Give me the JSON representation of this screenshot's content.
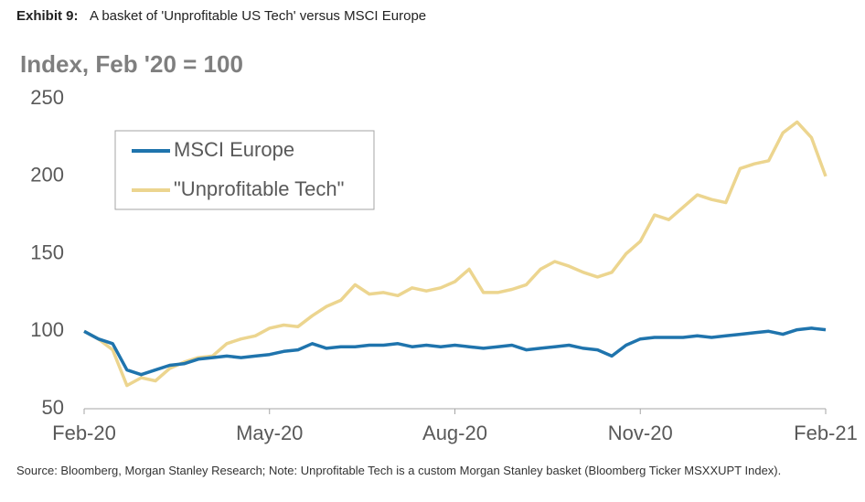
{
  "chart_data": {
    "type": "line",
    "title_label": "Exhibit 9:",
    "title": "A basket of 'Unprofitable US Tech' versus MSCI Europe",
    "y_label": "Index, Feb '20 = 100",
    "source": "Source: Bloomberg, Morgan Stanley Research; Note: Unprofitable Tech is a custom Morgan Stanley basket (Bloomberg Ticker MSXXUPT Index).",
    "categories": [
      "Feb-20",
      null,
      null,
      null,
      null,
      null,
      null,
      null,
      null,
      null,
      null,
      null,
      null,
      "May-20",
      null,
      null,
      null,
      null,
      null,
      null,
      null,
      null,
      null,
      null,
      null,
      null,
      "Aug-20",
      null,
      null,
      null,
      null,
      null,
      null,
      null,
      null,
      null,
      null,
      null,
      null,
      "Nov-20",
      null,
      null,
      null,
      null,
      null,
      null,
      null,
      null,
      null,
      null,
      null,
      null,
      "Feb-21"
    ],
    "series": [
      {
        "name": "MSCI Europe",
        "color": "#1f74ad",
        "values": [
          100,
          95,
          92,
          75,
          72,
          75,
          78,
          79,
          82,
          83,
          84,
          83,
          84,
          85,
          87,
          88,
          92,
          89,
          90,
          90,
          91,
          91,
          92,
          90,
          91,
          90,
          91,
          90,
          89,
          90,
          91,
          88,
          89,
          90,
          91,
          89,
          88,
          84,
          91,
          95,
          96,
          96,
          96,
          97,
          96,
          97,
          98,
          99,
          100,
          98,
          101,
          102,
          101
        ]
      },
      {
        "name": "\"Unprofitable Tech\"",
        "color": "#ecd58f",
        "values": [
          100,
          95,
          88,
          65,
          70,
          68,
          76,
          80,
          83,
          84,
          92,
          95,
          97,
          102,
          104,
          103,
          110,
          116,
          120,
          130,
          124,
          125,
          123,
          128,
          126,
          128,
          132,
          140,
          125,
          125,
          127,
          130,
          140,
          145,
          142,
          138,
          135,
          138,
          150,
          158,
          175,
          172,
          180,
          188,
          185,
          183,
          205,
          208,
          210,
          228,
          235,
          225,
          200
        ]
      }
    ],
    "ylim": [
      50,
      250
    ],
    "yticks": [
      50,
      100,
      150,
      200,
      250
    ],
    "grid": false,
    "legend": "upper left"
  }
}
